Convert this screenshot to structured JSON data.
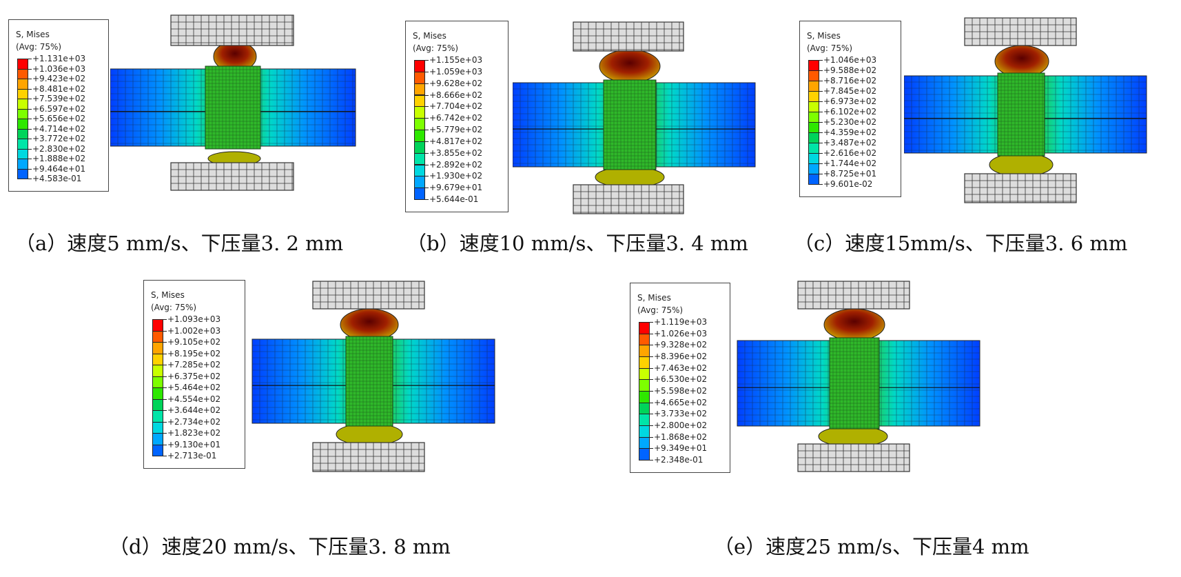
{
  "legend": {
    "title": "S, Mises",
    "subtitle": "(Avg: 75%)",
    "colors": [
      "#ff0000",
      "#ff5a00",
      "#ffa500",
      "#ffd200",
      "#c8ff00",
      "#7dff00",
      "#2ee800",
      "#00d45a",
      "#00e5a8",
      "#00d8e0",
      "#00a8ff",
      "#0064ff",
      "#0000ff"
    ]
  },
  "panels": [
    {
      "id": "a",
      "caption_letter": "（a）",
      "caption_text": "速度5 mm/s、下压量3. 2 mm",
      "legend_values": [
        "+1.131e+03",
        "+1.036e+03",
        "+9.423e+02",
        "+8.481e+02",
        "+7.539e+02",
        "+6.597e+02",
        "+5.656e+02",
        "+4.714e+02",
        "+3.772e+02",
        "+2.830e+02",
        "+1.888e+02",
        "+9.464e+01",
        "+4.583e-01"
      ]
    },
    {
      "id": "b",
      "caption_letter": "（b）",
      "caption_text": "速度10 mm/s、下压量3. 4 mm",
      "legend_values": [
        "+1.155e+03",
        "+1.059e+03",
        "+9.628e+02",
        "+8.666e+02",
        "+7.704e+02",
        "+6.742e+02",
        "+5.779e+02",
        "+4.817e+02",
        "+3.855e+02",
        "+2.892e+02",
        "+1.930e+02",
        "+9.679e+01",
        "+5.644e-01"
      ]
    },
    {
      "id": "c",
      "caption_letter": "（c）",
      "caption_text": "速度15mm/s、下压量3. 6 mm",
      "legend_values": [
        "+1.046e+03",
        "+9.588e+02",
        "+8.716e+02",
        "+7.845e+02",
        "+6.973e+02",
        "+6.102e+02",
        "+5.230e+02",
        "+4.359e+02",
        "+3.487e+02",
        "+2.616e+02",
        "+1.744e+02",
        "+8.725e+01",
        "+9.601e-02"
      ]
    },
    {
      "id": "d",
      "caption_letter": "（d）",
      "caption_text": "速度20 mm/s、下压量3. 8 mm",
      "legend_values": [
        "+1.093e+03",
        "+1.002e+03",
        "+9.105e+02",
        "+8.195e+02",
        "+7.285e+02",
        "+6.375e+02",
        "+5.464e+02",
        "+4.554e+02",
        "+3.644e+02",
        "+2.734e+02",
        "+1.823e+02",
        "+9.130e+01",
        "+2.713e-01"
      ]
    },
    {
      "id": "e",
      "caption_letter": "（e）",
      "caption_text": "速度25 mm/s、下压量4 mm",
      "legend_values": [
        "+1.119e+03",
        "+1.026e+03",
        "+9.328e+02",
        "+8.396e+02",
        "+7.463e+02",
        "+6.530e+02",
        "+5.598e+02",
        "+4.665e+02",
        "+3.733e+02",
        "+2.800e+02",
        "+1.868e+02",
        "+9.349e+01",
        "+2.348e-01"
      ]
    }
  ]
}
